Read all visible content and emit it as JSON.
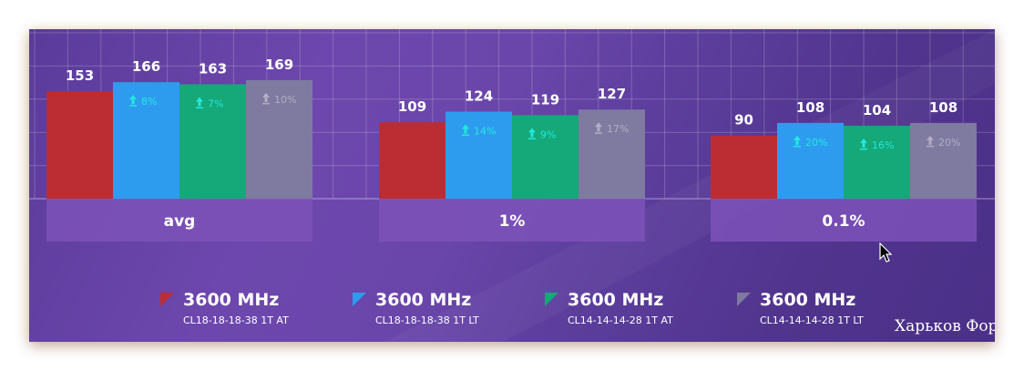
{
  "chart_data": {
    "type": "bar",
    "categories": [
      "avg",
      "1%",
      "0.1%"
    ],
    "series": [
      {
        "color": "#bb2d33",
        "values": [
          153,
          109,
          90
        ],
        "deltas": [
          "",
          "",
          ""
        ]
      },
      {
        "color": "#2e9cee",
        "values": [
          166,
          124,
          108
        ],
        "deltas": [
          "8%",
          "14%",
          "20%"
        ]
      },
      {
        "color": "#15a878",
        "values": [
          163,
          119,
          104
        ],
        "deltas": [
          "7%",
          "9%",
          "16%"
        ]
      },
      {
        "color": "#7f7aa0",
        "values": [
          169,
          127,
          108
        ],
        "deltas": [
          "10%",
          "17%",
          "20%"
        ]
      }
    ],
    "delta_colors": [
      "",
      "#23e8e0",
      "#23e8e0",
      "#b3adc6"
    ],
    "ylim": [
      0,
      180
    ],
    "grid": true,
    "legend_position": "bottom"
  },
  "legend": [
    {
      "title": "3600 MHz",
      "subtitle": "CL18-18-18-38 1T AT",
      "color": "#bb2d33"
    },
    {
      "title": "3600 MHz",
      "subtitle": "CL18-18-18-38 1T LT",
      "color": "#2e9cee"
    },
    {
      "title": "3600 MHz",
      "subtitle": "CL14-14-14-28 1T AT",
      "color": "#15a878"
    },
    {
      "title": "3600 MHz",
      "subtitle": "CL14-14-14-28 1T LT",
      "color": "#7f7aa0"
    }
  ],
  "watermark": "Харьков Форум"
}
